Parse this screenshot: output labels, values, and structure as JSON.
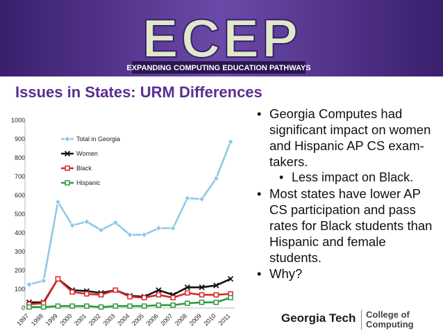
{
  "header": {
    "logo": "ECEP",
    "tagline": "EXPANDING COMPUTING EDUCATION PATHWAYS"
  },
  "slide_title": "Issues in States: URM Differences",
  "bullets": [
    {
      "level": 1,
      "text": "Georgia Computes had significant impact on women and Hispanic AP CS exam-takers."
    },
    {
      "level": 2,
      "text": "Less impact on Black."
    },
    {
      "level": 1,
      "text": "Most states have lower AP CS participation and pass rates for Black students than Hispanic and female students."
    },
    {
      "level": 1,
      "text": "Why?"
    }
  ],
  "footer": {
    "university": "Georgia Tech",
    "college": "College of Computing"
  },
  "chart_data": {
    "type": "line",
    "categories": [
      "1997",
      "1998",
      "1999",
      "2000",
      "2001",
      "2002",
      "2003",
      "2004",
      "2005",
      "2006",
      "2007",
      "2008",
      "2009",
      "2010",
      "2011"
    ],
    "series": [
      {
        "name": "Total in Georgia",
        "color": "#8ec9e6",
        "marker": "diamond",
        "values": [
          125,
          145,
          565,
          440,
          460,
          415,
          455,
          390,
          390,
          425,
          425,
          585,
          580,
          690,
          885
        ]
      },
      {
        "name": "Women",
        "color": "#111111",
        "marker": "x",
        "values": [
          30,
          30,
          155,
          95,
          90,
          80,
          95,
          65,
          60,
          95,
          70,
          110,
          110,
          120,
          155
        ]
      },
      {
        "name": "Black",
        "color": "#d9262b",
        "marker": "square",
        "values": [
          20,
          25,
          155,
          85,
          75,
          70,
          95,
          60,
          55,
          70,
          55,
          80,
          70,
          70,
          75
        ]
      },
      {
        "name": "Hispanic",
        "color": "#2e9a3c",
        "marker": "square",
        "values": [
          5,
          5,
          10,
          10,
          10,
          5,
          10,
          10,
          10,
          15,
          15,
          25,
          30,
          30,
          55
        ]
      }
    ],
    "ylim": [
      0,
      1000
    ],
    "yticks": [
      0,
      100,
      200,
      300,
      400,
      500,
      600,
      700,
      800,
      900,
      1000
    ],
    "grid": false,
    "legend": "upper-left"
  }
}
